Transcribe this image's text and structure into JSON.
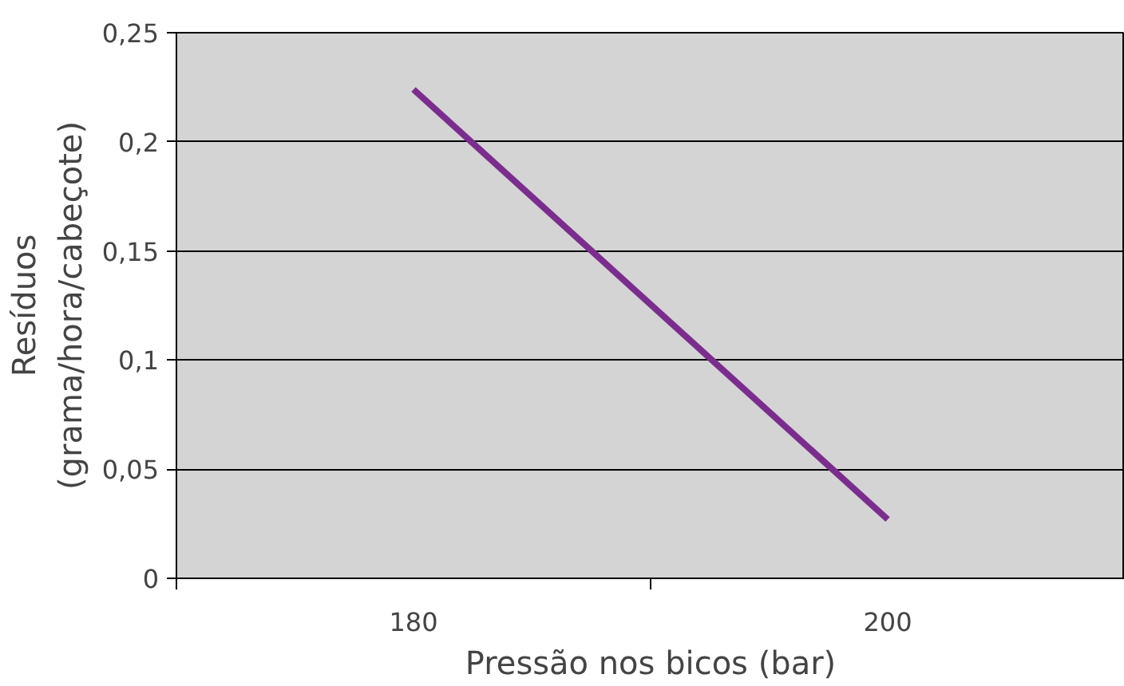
{
  "chart_data": {
    "type": "line",
    "xlabel": "Pressão nos bicos (bar)",
    "ylabel": "Resíduos\n(grama/hora/cabeçote)",
    "categories": [
      "180",
      "200"
    ],
    "series": [
      {
        "color": "#7b2d8e",
        "values": [
          0.224,
          0.027
        ]
      }
    ],
    "ylim": [
      0,
      0.25
    ],
    "yticks": [
      0,
      {
        "value": 0.05,
        "label": "0,05"
      },
      {
        "value": 0.1,
        "label": "0,1"
      },
      {
        "value": 0.15,
        "label": "0,15"
      },
      {
        "value": 0.2,
        "label": "0,2"
      },
      {
        "value": 0.25,
        "label": "0,25"
      }
    ],
    "grid": "y",
    "marker": "none",
    "line_style": "solid"
  }
}
